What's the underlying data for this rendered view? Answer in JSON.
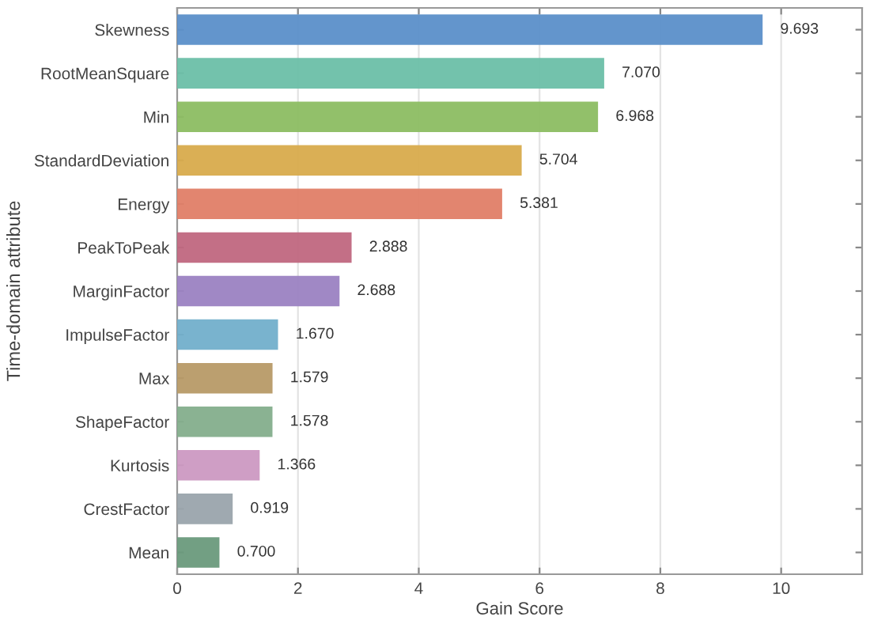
{
  "chart_data": {
    "type": "bar",
    "orientation": "horizontal",
    "xlabel": "Gain Score",
    "ylabel": "Time-domain attribute",
    "categories": [
      "Skewness",
      "RootMeanSquare",
      "Min",
      "StandardDeviation",
      "Energy",
      "PeakToPeak",
      "MarginFactor",
      "ImpulseFactor",
      "Max",
      "ShapeFactor",
      "Kurtosis",
      "CrestFactor",
      "Mean"
    ],
    "values": [
      9.693,
      7.07,
      6.968,
      5.704,
      5.381,
      2.888,
      2.688,
      1.67,
      1.579,
      1.578,
      1.366,
      0.919,
      0.7
    ],
    "value_labels": [
      "9.693",
      "7.070",
      "6.968",
      "5.704",
      "5.381",
      "2.888",
      "2.688",
      "1.670",
      "1.579",
      "1.578",
      "1.366",
      "0.919",
      "0.700"
    ],
    "colors": [
      "#5b8fc9",
      "#6bbfa8",
      "#8cbd62",
      "#d8ab4c",
      "#e07e67",
      "#c0677f",
      "#9b82c2",
      "#72afcb",
      "#b79a67",
      "#84ae8c",
      "#cc99c2",
      "#9aa4ac",
      "#6a9a7c"
    ],
    "xlim": [
      0,
      11.34
    ],
    "xticks": [
      0,
      2,
      4,
      6,
      8,
      10
    ],
    "grid": "x",
    "legend": false
  }
}
